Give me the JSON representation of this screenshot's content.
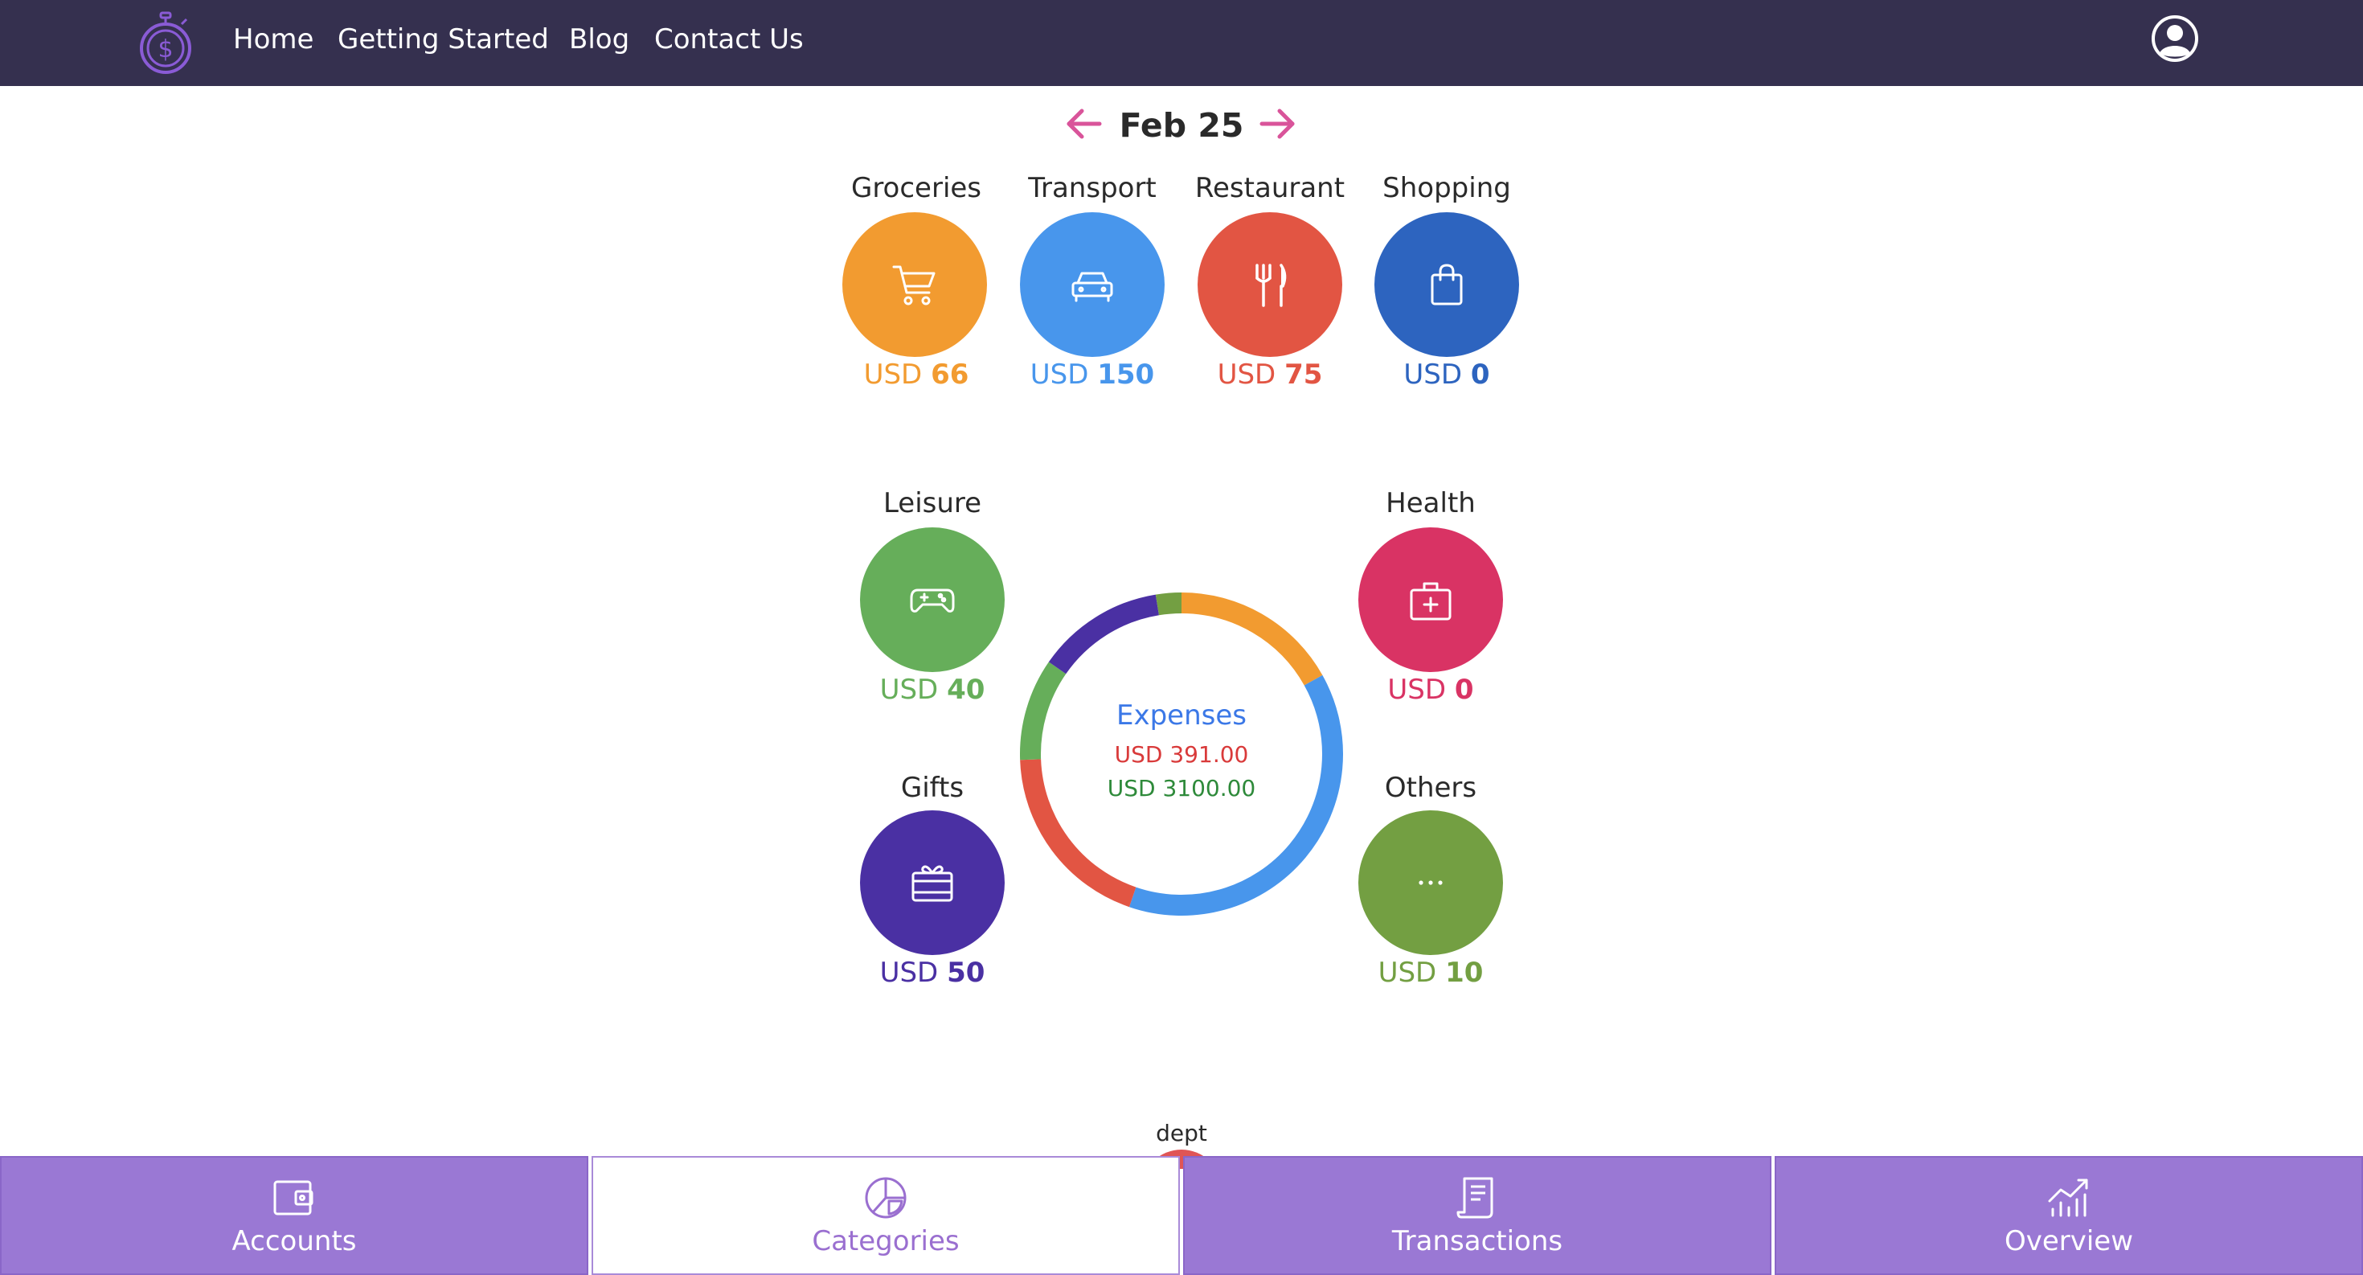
{
  "nav": {
    "items": [
      "Home",
      "Getting Started",
      "Blog",
      "Contact Us"
    ]
  },
  "month": {
    "label": "Feb 25"
  },
  "categories": [
    {
      "name": "Groceries",
      "currency": "USD",
      "amount": "66",
      "color": "#f29b30",
      "icon": "cart-icon"
    },
    {
      "name": "Transport",
      "currency": "USD",
      "amount": "150",
      "color": "#4896ec",
      "icon": "car-icon"
    },
    {
      "name": "Restaurant",
      "currency": "USD",
      "amount": "75",
      "color": "#e25543",
      "icon": "fork-knife-icon"
    },
    {
      "name": "Shopping",
      "currency": "USD",
      "amount": "0",
      "color": "#2d64bf",
      "icon": "bag-icon"
    },
    {
      "name": "Leisure",
      "currency": "USD",
      "amount": "40",
      "color": "#66ae5a",
      "icon": "gamepad-icon"
    },
    {
      "name": "Health",
      "currency": "USD",
      "amount": "0",
      "color": "#d93364",
      "icon": "medical-kit-icon"
    },
    {
      "name": "Gifts",
      "currency": "USD",
      "amount": "50",
      "color": "#4a30a3",
      "icon": "gift-card-icon"
    },
    {
      "name": "Others",
      "currency": "USD",
      "amount": "10",
      "color": "#739f42",
      "icon": "ellipsis-icon"
    }
  ],
  "summary": {
    "title": "Expenses",
    "spent": "USD 391.00",
    "budget": "USD 3100.00"
  },
  "dept": {
    "label": "dept"
  },
  "tabs": [
    {
      "label": "Accounts",
      "icon": "wallet-icon",
      "active": false
    },
    {
      "label": "Categories",
      "icon": "pie-chart-icon",
      "active": true
    },
    {
      "label": "Transactions",
      "icon": "receipt-icon",
      "active": false
    },
    {
      "label": "Overview",
      "icon": "trend-chart-icon",
      "active": false
    }
  ],
  "colors": {
    "topbar": "#35304f",
    "tabbar": "#9a78d4",
    "accent": "#d9549a",
    "active_tab_text": "#9a6fd0"
  }
}
